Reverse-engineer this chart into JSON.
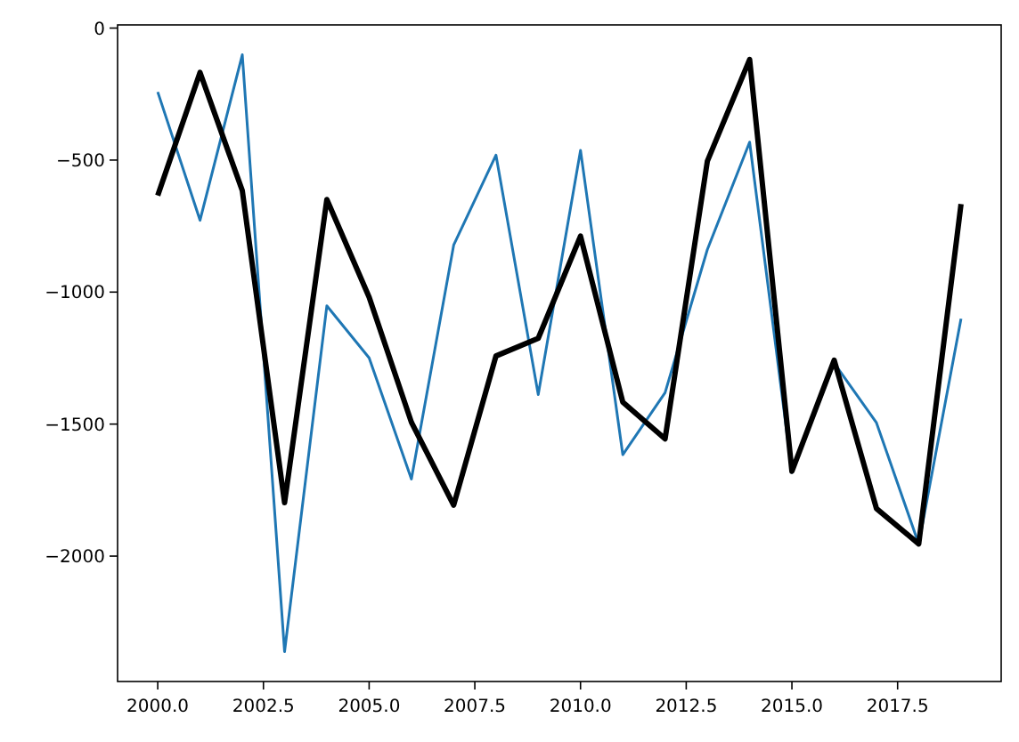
{
  "chart_data": {
    "type": "line",
    "x": [
      2000,
      2001,
      2002,
      2003,
      2004,
      2005,
      2006,
      2007,
      2008,
      2009,
      2010,
      2011,
      2012,
      2013,
      2014,
      2015,
      2016,
      2017,
      2018,
      2019
    ],
    "series": [
      {
        "color": "#1f77b4",
        "values": [
          -242,
          -728,
          -101,
          -2362,
          -1052,
          -1249,
          -1708,
          -822,
          -481,
          -1388,
          -463,
          -1616,
          -1381,
          -839,
          -432,
          -1683,
          -1269,
          -1495,
          -1954,
          -1101
        ]
      },
      {
        "color": "#000000",
        "values": [
          -634,
          -168,
          -616,
          -1798,
          -649,
          -1019,
          -1493,
          -1807,
          -1242,
          -1175,
          -788,
          -1417,
          -1556,
          -504,
          -119,
          -1679,
          -1258,
          -1820,
          -1954,
          -667
        ]
      }
    ],
    "xlim": [
      1999.05,
      2019.95
    ],
    "ylim": [
      -2475,
      12
    ],
    "xticks": [
      {
        "value": 2000,
        "label": "2000.0"
      },
      {
        "value": 2002.5,
        "label": "2002.5"
      },
      {
        "value": 2005,
        "label": "2005.0"
      },
      {
        "value": 2007.5,
        "label": "2007.5"
      },
      {
        "value": 2010,
        "label": "2010.0"
      },
      {
        "value": 2012.5,
        "label": "2012.5"
      },
      {
        "value": 2015,
        "label": "2015.0"
      },
      {
        "value": 2017.5,
        "label": "2017.5"
      }
    ],
    "yticks": [
      0,
      -500,
      -1000,
      -1500,
      -2000
    ]
  }
}
